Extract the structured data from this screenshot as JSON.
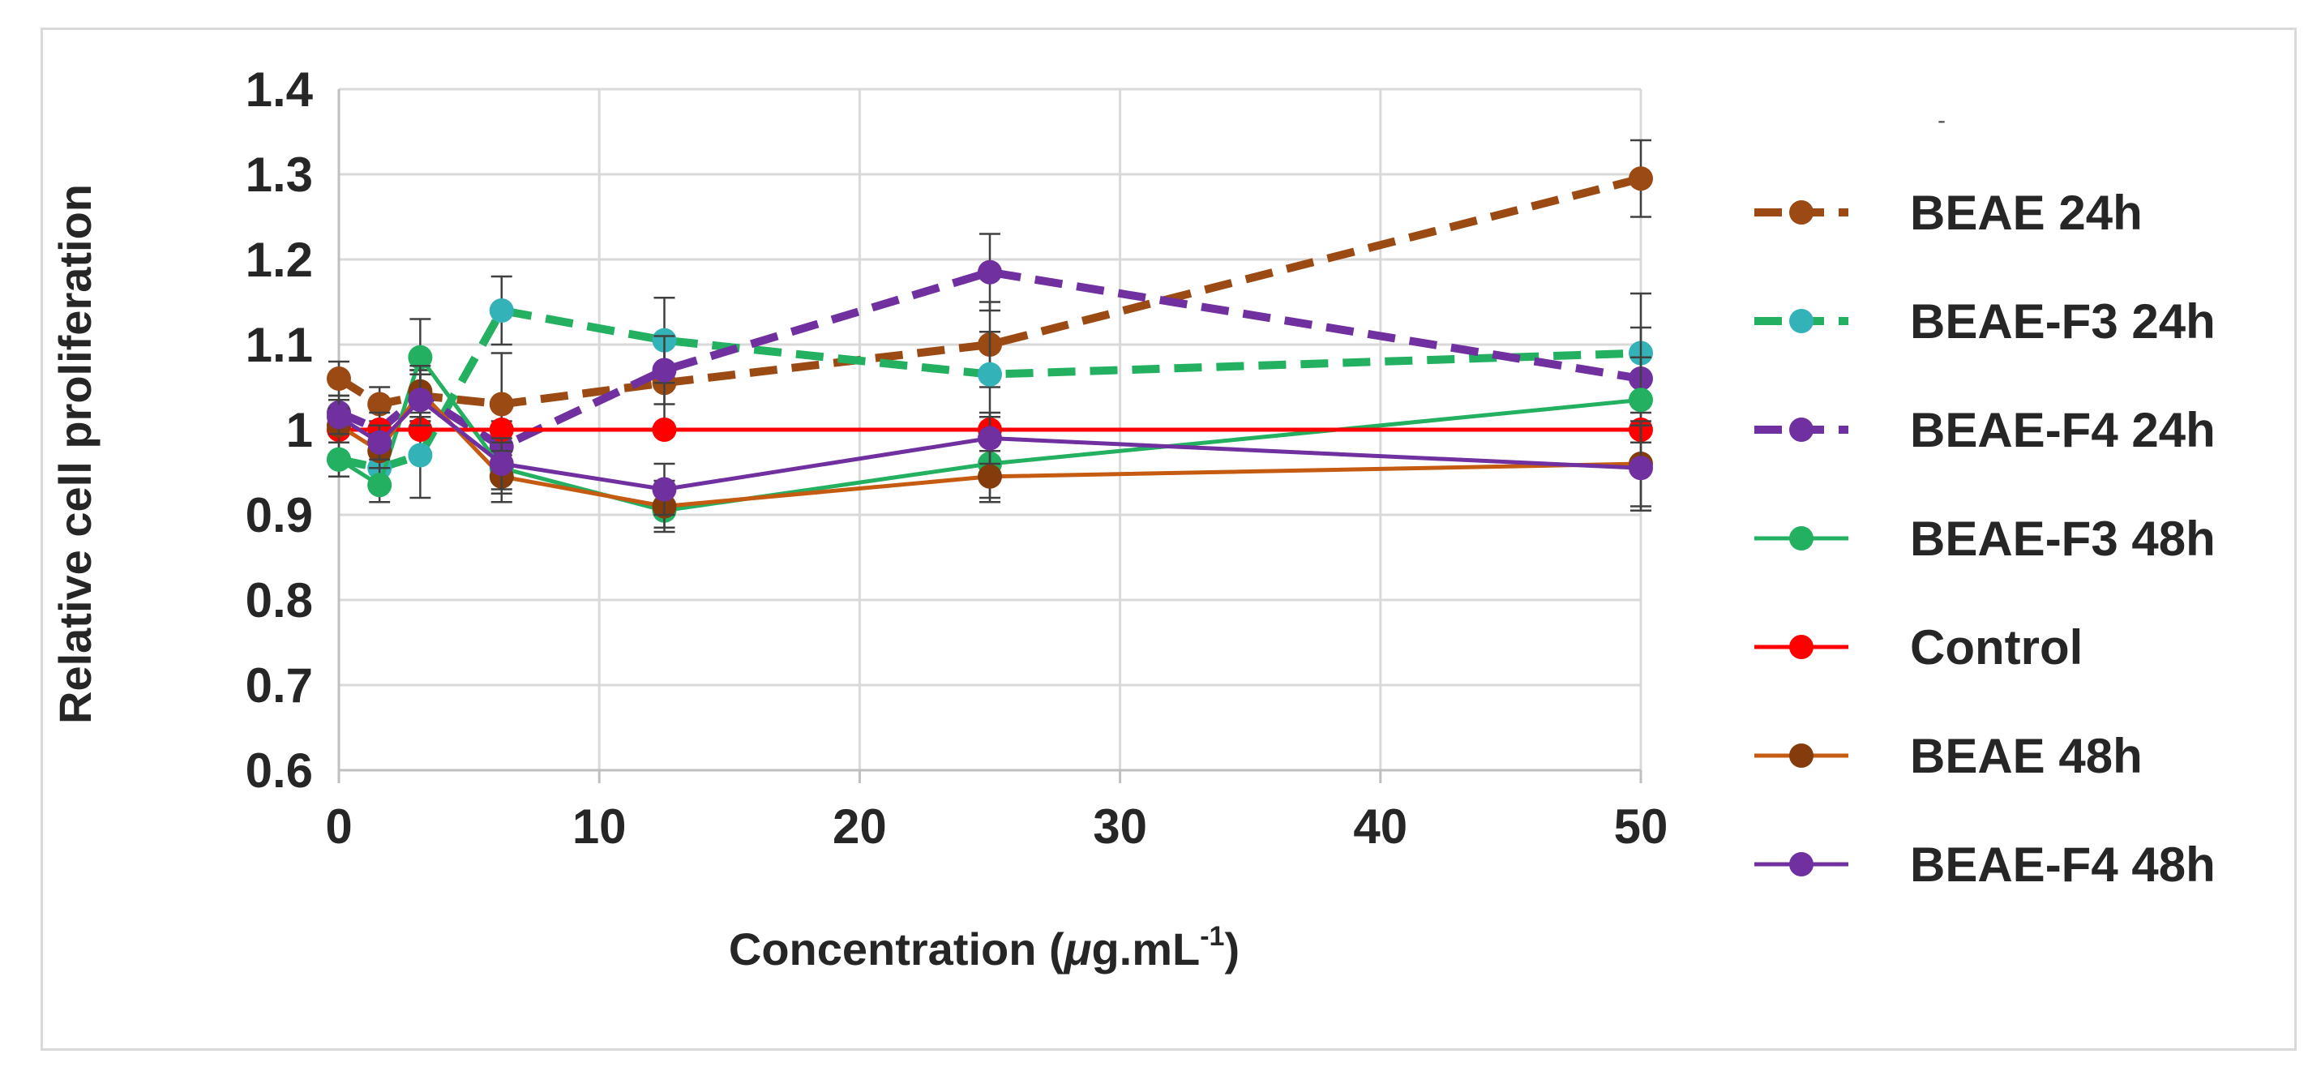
{
  "chart_data": {
    "type": "line",
    "title": "",
    "xlabel": "Concentration (",
    "xlabel_mu": "μ",
    "xlabel_rest": "g.mL",
    "xlabel_sup": "-1",
    "xlabel_close": ")",
    "ylabel": "Relative cell proliferation",
    "xlim": [
      0,
      50
    ],
    "ylim": [
      0.6,
      1.4
    ],
    "xticks": [
      0,
      10,
      20,
      30,
      40,
      50
    ],
    "xtick_labels": [
      "0",
      "10",
      "20",
      "30",
      "40",
      "50"
    ],
    "yticks": [
      0.6,
      0.7,
      0.8,
      0.9,
      1.0,
      1.1,
      1.2,
      1.3,
      1.4
    ],
    "ytick_labels": [
      "0.6",
      "0.7",
      "0.8",
      "0.9",
      "1",
      "1.1",
      "1.2",
      "1.3",
      "1.4"
    ],
    "grid": true,
    "legend_position": "right",
    "x": [
      0,
      1.5625,
      3.125,
      6.25,
      12.5,
      25,
      50
    ],
    "series": [
      {
        "name": "BEAE 24h",
        "color": "#9c4a13",
        "dashed": true,
        "values": [
          1.06,
          1.03,
          1.04,
          1.03,
          1.055,
          1.1,
          1.295
        ],
        "errors": [
          0.02,
          0.02,
          0.03,
          0.06,
          0.05,
          0.05,
          0.045
        ]
      },
      {
        "name": "BEAE-F3 24h",
        "color": "#23b060",
        "marker_color": "#33b3b8",
        "dashed": true,
        "values": [
          0.965,
          0.955,
          0.97,
          1.14,
          1.105,
          1.065,
          1.09
        ],
        "errors": [
          0.02,
          0.02,
          0.05,
          0.04,
          0.05,
          0.05,
          0.07
        ]
      },
      {
        "name": "BEAE-F4 24h",
        "color": "#7030a0",
        "dashed": true,
        "values": [
          1.02,
          1.0,
          1.04,
          0.98,
          1.07,
          1.185,
          1.06
        ],
        "errors": [
          0.02,
          0.02,
          0.03,
          0.03,
          0.04,
          0.045,
          0.06
        ]
      },
      {
        "name": "BEAE-F3 48h",
        "color": "#23b060",
        "dashed": false,
        "values": [
          0.965,
          0.935,
          1.085,
          0.955,
          0.905,
          0.96,
          1.035
        ],
        "errors": [
          0.02,
          0.02,
          0.045,
          0.03,
          0.02,
          0.04,
          0.05
        ]
      },
      {
        "name": "Control",
        "color": "#ff0000",
        "dashed": false,
        "values": [
          1.0,
          1.0,
          1.0,
          1.0,
          1.0,
          1.0,
          1.0
        ],
        "errors": [
          0,
          0,
          0,
          0,
          0,
          0,
          0
        ]
      },
      {
        "name": "BEAE 48h",
        "color": "#c55a11",
        "marker_color": "#843c0c",
        "dashed": false,
        "values": [
          1.005,
          0.975,
          1.045,
          0.945,
          0.91,
          0.945,
          0.96
        ],
        "errors": [
          0.02,
          0.02,
          0.03,
          0.03,
          0.03,
          0.03,
          0.05
        ]
      },
      {
        "name": "BEAE-F4 48h",
        "color": "#7030a0",
        "dashed": false,
        "values": [
          1.015,
          0.985,
          1.035,
          0.96,
          0.93,
          0.99,
          0.955
        ],
        "errors": [
          0.02,
          0.02,
          0.03,
          0.03,
          0.03,
          0.03,
          0.05
        ]
      }
    ]
  }
}
